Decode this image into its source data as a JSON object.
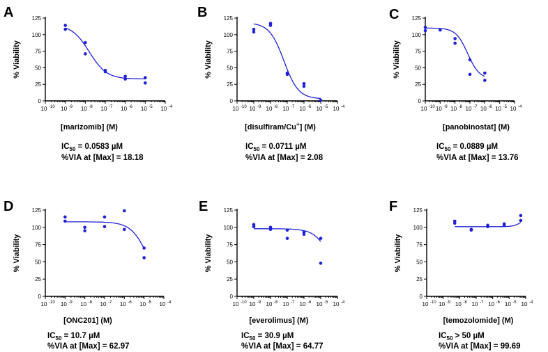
{
  "chart_data": [
    {
      "type": "scatter",
      "panel": "A",
      "xlabel_main": "[marizomib]",
      "xlabel_unit": " (M)",
      "ylabel": "% Viability",
      "yticks": [
        "0",
        "25",
        "50",
        "75",
        "100",
        "125"
      ],
      "ylim": [
        0,
        125
      ],
      "xticks_exp": [
        "-10",
        "-9",
        "-8",
        "-7",
        "-6",
        "-5",
        "-4"
      ],
      "xlim_log": [
        -10,
        -4
      ],
      "points": [
        [
          -9,
          114
        ],
        [
          -9,
          108
        ],
        [
          -8,
          88
        ],
        [
          -8,
          71
        ],
        [
          -7,
          46
        ],
        [
          -7,
          44
        ],
        [
          -6,
          37
        ],
        [
          -6,
          33
        ],
        [
          -5,
          35
        ],
        [
          -5,
          27
        ]
      ],
      "fit": {
        "top": 115,
        "bottom": 33,
        "logec50": -7.8,
        "hill": 1.0
      },
      "stat1_label": "IC",
      "stat1_sub": "50",
      "stat1_value": " = 0.0583 µM",
      "stat2": "%VIA at [Max] = 18.18"
    },
    {
      "type": "scatter",
      "panel": "B",
      "xlabel_main": "[disulfiram/Cu",
      "xlabel_sup": "+",
      "xlabel_tail": "] (M)",
      "ylabel": "% Viability",
      "yticks": [
        "0",
        "25",
        "50",
        "75",
        "100",
        "125"
      ],
      "ylim": [
        0,
        125
      ],
      "xticks_exp": [
        "-10",
        "-9",
        "-8",
        "-7",
        "-6",
        "-5",
        "-4"
      ],
      "xlim_log": [
        -10,
        -4
      ],
      "points": [
        [
          -9,
          108
        ],
        [
          -9,
          104
        ],
        [
          -8,
          117
        ],
        [
          -8,
          114
        ],
        [
          -7,
          42
        ],
        [
          -7,
          40
        ],
        [
          -6,
          26
        ],
        [
          -6,
          22
        ],
        [
          -5,
          1
        ]
      ],
      "fit": {
        "top": 118,
        "bottom": 3,
        "logec50": -7.2,
        "hill": 1.0
      },
      "stat1_label": "IC",
      "stat1_sub": "50",
      "stat1_value": " = 0.0711 µM",
      "stat2": "%VIA at [Max] = 2.08"
    },
    {
      "type": "scatter",
      "panel": "C",
      "xlabel_main": "[panobinostat]",
      "xlabel_unit": " (M)",
      "ylabel": "% Viability",
      "yticks": [
        "0",
        "25",
        "50",
        "75",
        "100",
        "125"
      ],
      "ylim": [
        0,
        125
      ],
      "xticks_exp": [
        "-10",
        "-9",
        "-8",
        "-7",
        "-6",
        "-5",
        "-4"
      ],
      "xlim_log": [
        -10,
        -4
      ],
      "points": [
        [
          -10,
          111
        ],
        [
          -10,
          106
        ],
        [
          -9,
          107
        ],
        [
          -8,
          94
        ],
        [
          -8,
          87
        ],
        [
          -7,
          62
        ],
        [
          -7,
          40
        ],
        [
          -6,
          42
        ],
        [
          -6,
          31
        ]
      ],
      "fit": {
        "top": 110,
        "bottom": 33,
        "logec50": -7.15,
        "hill": 1.1
      },
      "stat1_label": "IC",
      "stat1_sub": "50",
      "stat1_value": " = 0.0889 µM",
      "stat2": "%VIA at [Max] = 13.76"
    },
    {
      "type": "scatter",
      "panel": "D",
      "xlabel_main": "[ONC201]",
      "xlabel_unit": " (M)",
      "ylabel": "% Viability",
      "yticks": [
        "0",
        "25",
        "50",
        "75",
        "100",
        "125"
      ],
      "ylim": [
        0,
        125
      ],
      "xticks_exp": [
        "-10",
        "-9",
        "-8",
        "-7",
        "-6",
        "-5",
        "-4"
      ],
      "xlim_log": [
        -10,
        -4
      ],
      "points": [
        [
          -9,
          115
        ],
        [
          -9,
          109
        ],
        [
          -8,
          100
        ],
        [
          -8,
          95
        ],
        [
          -7,
          115
        ],
        [
          -7,
          101
        ],
        [
          -6,
          124
        ],
        [
          -6,
          97
        ],
        [
          -5,
          70
        ],
        [
          -5,
          56
        ]
      ],
      "fit": {
        "top": 108,
        "bottom": 0,
        "logec50": -4.75,
        "hill": 1.0
      },
      "stat1_label": "IC",
      "stat1_sub": "50",
      "stat1_value": " = 10.7 µM",
      "stat2": "%VIA at [Max] = 62.97"
    },
    {
      "type": "scatter",
      "panel": "E",
      "xlabel_main": "[everolimus]",
      "xlabel_unit": " (M)",
      "ylabel": "% Viability",
      "yticks": [
        "0",
        "25",
        "50",
        "75",
        "100",
        "125"
      ],
      "ylim": [
        0,
        125
      ],
      "xticks_exp": [
        "-10",
        "-9",
        "-8",
        "-7",
        "-6",
        "-5",
        "-4"
      ],
      "xlim_log": [
        -10,
        -4
      ],
      "points": [
        [
          -9,
          104
        ],
        [
          -9,
          101
        ],
        [
          -8,
          100
        ],
        [
          -8,
          97
        ],
        [
          -7,
          96
        ],
        [
          -7,
          84
        ],
        [
          -6,
          93
        ],
        [
          -6,
          90
        ],
        [
          -5,
          84
        ],
        [
          -5,
          48
        ]
      ],
      "fit": {
        "top": 98,
        "bottom": 0,
        "logec50": -4.3,
        "hill": 0.9
      },
      "stat1_label": "IC",
      "stat1_sub": "50",
      "stat1_value": " = 30.9 µM",
      "stat2": "%VIA at [Max] = 64.77"
    },
    {
      "type": "scatter",
      "panel": "F",
      "xlabel_main": "[temozolomide]",
      "xlabel_unit": " (M)",
      "ylabel": "% Viability",
      "yticks": [
        "0",
        "25",
        "50",
        "75",
        "100",
        "125"
      ],
      "ylim": [
        0,
        125
      ],
      "xticks_exp": [
        "-10",
        "-9",
        "-8",
        "-7",
        "-6",
        "-5",
        "-4"
      ],
      "xlim_log": [
        -10,
        -4
      ],
      "points": [
        [
          -8.3,
          109
        ],
        [
          -8.3,
          106
        ],
        [
          -7.3,
          97
        ],
        [
          -7.3,
          96
        ],
        [
          -6.3,
          103
        ],
        [
          -6.3,
          101
        ],
        [
          -5.3,
          105
        ],
        [
          -5.3,
          103
        ],
        [
          -4.3,
          117
        ],
        [
          -4.3,
          110
        ]
      ],
      "fit": {
        "type": "rising",
        "base": 101,
        "rise": 12,
        "center": -4.3,
        "slope": 2.0
      },
      "stat1_label": "IC",
      "stat1_sub": "50",
      "stat1_value": " > 50 µM",
      "stat2": "%VIA at [Max] = 99.69"
    }
  ]
}
